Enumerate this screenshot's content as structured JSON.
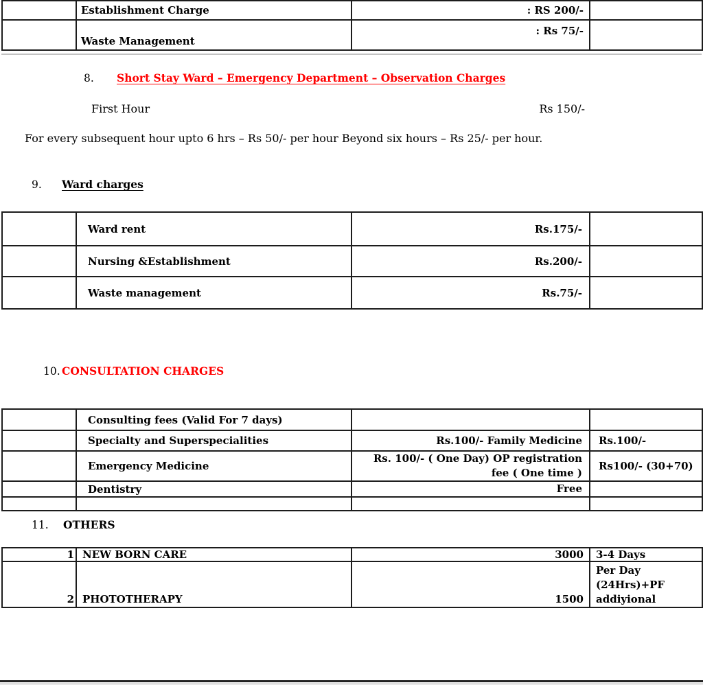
{
  "colors": {
    "heading_red": "#ff0000",
    "text": "#000000",
    "border": "#1c1c1c"
  },
  "top_table": {
    "rows": [
      {
        "label": "Establishment Charge",
        "value": ": RS 200/-"
      },
      {
        "label": "Waste Management",
        "value": ": Rs 75/-"
      }
    ]
  },
  "sections": {
    "s8": {
      "number": "8.",
      "title": "Short Stay Ward – Emergency Department – Observation Charges"
    },
    "s9": {
      "number": "9.",
      "title": "Ward charges"
    },
    "s10": {
      "number": "10.",
      "title": "CONSULTATION CHARGES"
    },
    "s11": {
      "number": "11.",
      "title": "OTHERS"
    }
  },
  "observation": {
    "first_hour_label": "First Hour",
    "first_hour_value": "Rs 150/-",
    "note": "For every subsequent hour upto 6 hrs – Rs 50/- per hour Beyond six hours – Rs 25/- per hour."
  },
  "ward_table": {
    "rows": [
      {
        "label": "Ward rent",
        "value": "Rs.175/-"
      },
      {
        "label": "Nursing &Establishment",
        "value": "Rs.200/-"
      },
      {
        "label": "Waste management",
        "value": "Rs.75/-"
      }
    ]
  },
  "consultation_table": {
    "rows": [
      {
        "label": "Consulting fees (Valid For 7 days)",
        "value_lines": [
          "",
          ""
        ],
        "extra": ""
      },
      {
        "label": "Specialty and Superspecialities",
        "value_lines": [
          "Rs.100/- Family Medicine",
          ""
        ],
        "extra": "Rs.100/-"
      },
      {
        "label": "Emergency Medicine",
        "value_lines": [
          "Rs. 100/- ( One Day) OP registration",
          "fee ( One time )"
        ],
        "extra": "Rs100/- (30+70)"
      },
      {
        "label": "Dentistry",
        "value_lines": [
          "Free",
          ""
        ],
        "extra": ""
      },
      {
        "label": "",
        "value_lines": [
          "",
          ""
        ],
        "extra": ""
      }
    ]
  },
  "others_table": {
    "rows": [
      {
        "sno": "1",
        "label": "NEW BORN CARE",
        "value": "3000",
        "note_lines": [
          "3-4 Days",
          "",
          ""
        ]
      },
      {
        "sno": "2",
        "label": "PHOTOTHERAPY",
        "value": "1500",
        "note_lines": [
          "Per Day",
          "(24Hrs)+PF",
          "addiyional"
        ]
      }
    ]
  }
}
